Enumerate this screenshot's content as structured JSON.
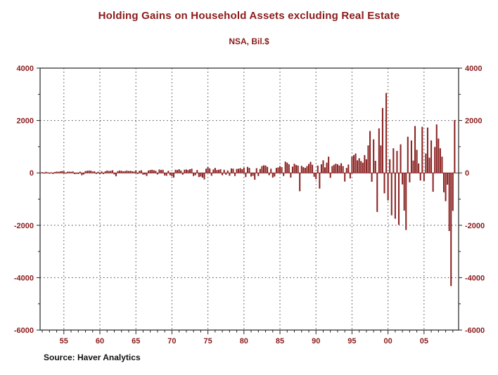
{
  "title": "Holding Gains on Household Assets excluding Real Estate",
  "subtitle": "NSA, Bil.$",
  "source": "Source:  Haver Analytics",
  "colors": {
    "bar": "#8B2323",
    "accent_text": "#8B1A1A",
    "grid": "#444444",
    "frame": "#222222"
  },
  "chart_data": {
    "type": "bar",
    "title": "Holding Gains on Household Assets excluding Real Estate",
    "subtitle": "NSA, Bil.$",
    "source": "Source:  Haver Analytics",
    "x_start_year": 1952,
    "x_step_years": 0.25,
    "xlim": [
      1951.7,
      2009.8
    ],
    "ylim": [
      -6000,
      4000
    ],
    "y_ticks": [
      4000,
      2000,
      0,
      -2000,
      -4000,
      -6000
    ],
    "x_ticks": [
      {
        "year": 1955,
        "label": "55"
      },
      {
        "year": 1960,
        "label": "60"
      },
      {
        "year": 1965,
        "label": "65"
      },
      {
        "year": 1970,
        "label": "70"
      },
      {
        "year": 1975,
        "label": "75"
      },
      {
        "year": 1980,
        "label": "80"
      },
      {
        "year": 1985,
        "label": "85"
      },
      {
        "year": 1990,
        "label": "90"
      },
      {
        "year": 1995,
        "label": "95"
      },
      {
        "year": 2000,
        "label": "00"
      },
      {
        "year": 2005,
        "label": "05"
      }
    ],
    "grid": true,
    "legend": "none",
    "values": [
      30,
      -20,
      40,
      25,
      -30,
      20,
      -40,
      35,
      50,
      40,
      60,
      70,
      60,
      -30,
      45,
      50,
      40,
      55,
      -45,
      -35,
      -40,
      45,
      -90,
      -60,
      70,
      80,
      90,
      85,
      50,
      60,
      -40,
      45,
      -50,
      55,
      -45,
      60,
      90,
      70,
      80,
      100,
      -60,
      -130,
      70,
      90,
      80,
      60,
      70,
      90,
      70,
      80,
      60,
      50,
      90,
      -40,
      80,
      100,
      -70,
      -60,
      -120,
      90,
      110,
      120,
      100,
      80,
      -60,
      130,
      110,
      120,
      -100,
      -110,
      80,
      -90,
      -130,
      -180,
      120,
      110,
      140,
      90,
      -70,
      120,
      130,
      110,
      140,
      160,
      -120,
      -90,
      110,
      -160,
      -140,
      -180,
      -250,
      160,
      220,
      170,
      -110,
      130,
      190,
      110,
      120,
      140,
      -90,
      120,
      -70,
      90,
      -110,
      170,
      160,
      -120,
      150,
      160,
      180,
      140,
      200,
      -160,
      230,
      190,
      -140,
      -110,
      -260,
      180,
      -120,
      150,
      260,
      290,
      280,
      230,
      -90,
      160,
      -180,
      -140,
      190,
      210,
      260,
      220,
      -120,
      430,
      390,
      330,
      -180,
      240,
      350,
      300,
      280,
      -700,
      270,
      220,
      190,
      260,
      340,
      420,
      310,
      -150,
      -240,
      280,
      -600,
      330,
      480,
      210,
      390,
      620,
      -190,
      260,
      310,
      350,
      330,
      280,
      370,
      260,
      -330,
      190,
      320,
      -210,
      620,
      680,
      740,
      480,
      560,
      450,
      390,
      680,
      520,
      1050,
      1600,
      -340,
      1280,
      460,
      -1490,
      1700,
      1050,
      2480,
      -780,
      3050,
      -1050,
      520,
      -1620,
      940,
      -1750,
      840,
      -1980,
      1090,
      -440,
      -1440,
      -2180,
      1380,
      -360,
      1240,
      470,
      1790,
      880,
      360,
      -290,
      1760,
      -310,
      740,
      1730,
      580,
      1240,
      -720,
      990,
      1850,
      1310,
      940,
      620,
      -740,
      -1080,
      -450,
      -2220,
      -4320,
      -1450,
      2020
    ]
  }
}
